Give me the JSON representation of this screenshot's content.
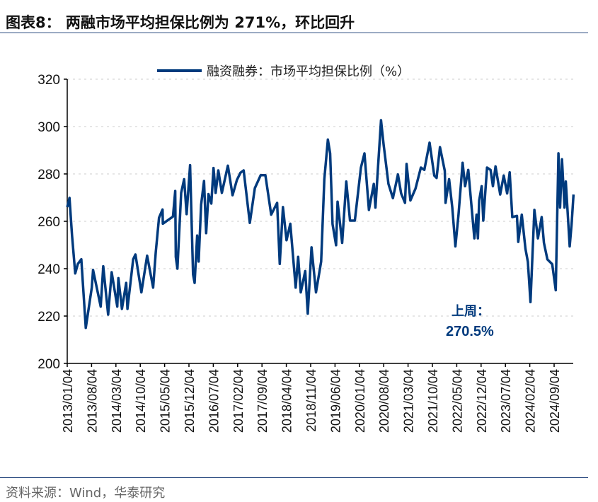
{
  "title": "图表8：  两融市场平均担保比例为 271%，环比回升",
  "source": "资料来源：Wind，华泰研究",
  "chart_data": {
    "type": "line",
    "title": "",
    "xlabel": "",
    "ylabel": "",
    "ylim": [
      200,
      320
    ],
    "yticks": [
      "200",
      "220",
      "240",
      "260",
      "280",
      "300",
      "320"
    ],
    "xticks": [
      "2013/01/04",
      "2013/08/04",
      "2014/03/04",
      "2014/10/04",
      "2015/05/04",
      "2015/12/04",
      "2016/07/04",
      "2017/02/04",
      "2017/09/04",
      "2018/04/04",
      "2018/11/04",
      "2019/06/04",
      "2020/01/04",
      "2020/08/04",
      "2021/03/04",
      "2021/10/04",
      "2022/05/04",
      "2022/12/04",
      "2023/07/04",
      "2024/02/04",
      "2024/09/04"
    ],
    "grid": "horizontal dotted",
    "legend": "top-center",
    "color": "#003a7d",
    "series": [
      {
        "name": "融资融券：市场平均担保比例（%）",
        "points": [
          [
            "2013-01-04",
            266
          ],
          [
            "2013-01-24",
            269.9
          ],
          [
            "2013-02-15",
            254
          ],
          [
            "2013-03-15",
            238
          ],
          [
            "2013-04-07",
            242
          ],
          [
            "2013-05-07",
            244
          ],
          [
            "2013-06-15",
            215
          ],
          [
            "2013-08-07",
            232
          ],
          [
            "2013-08-18",
            239.5
          ],
          [
            "2013-10-24",
            224
          ],
          [
            "2013-11-15",
            241
          ],
          [
            "2013-12-28",
            220.6
          ],
          [
            "2014-01-28",
            238.5
          ],
          [
            "2014-03-18",
            224
          ],
          [
            "2014-03-28",
            236
          ],
          [
            "2014-04-28",
            223
          ],
          [
            "2014-06-04",
            234
          ],
          [
            "2014-06-15",
            223
          ],
          [
            "2014-08-04",
            244
          ],
          [
            "2014-08-24",
            246
          ],
          [
            "2014-10-15",
            230
          ],
          [
            "2014-12-04",
            245.5
          ],
          [
            "2015-01-26",
            232
          ],
          [
            "2015-02-18",
            247
          ],
          [
            "2015-03-18",
            261.5
          ],
          [
            "2015-04-18",
            265
          ],
          [
            "2015-04-21",
            259
          ],
          [
            "2015-07-18",
            262
          ],
          [
            "2015-08-07",
            272.8
          ],
          [
            "2015-08-12",
            245
          ],
          [
            "2015-08-26",
            240
          ],
          [
            "2015-09-28",
            272
          ],
          [
            "2015-10-24",
            277.8
          ],
          [
            "2015-11-15",
            263
          ],
          [
            "2015-12-15",
            283.7
          ],
          [
            "2016-01-10",
            237.6
          ],
          [
            "2016-01-24",
            234
          ],
          [
            "2016-02-15",
            254
          ],
          [
            "2016-02-28",
            243
          ],
          [
            "2016-03-21",
            267
          ],
          [
            "2016-04-15",
            277
          ],
          [
            "2016-05-04",
            255
          ],
          [
            "2016-05-24",
            271.5
          ],
          [
            "2016-06-18",
            267.5
          ],
          [
            "2016-07-07",
            282.5
          ],
          [
            "2016-07-26",
            272
          ],
          [
            "2016-08-18",
            281.5
          ],
          [
            "2016-09-18",
            272
          ],
          [
            "2016-11-10",
            283.5
          ],
          [
            "2016-12-21",
            271
          ],
          [
            "2017-01-28",
            277.5
          ],
          [
            "2017-02-28",
            280.5
          ],
          [
            "2017-03-28",
            281.5
          ],
          [
            "2017-05-21",
            259.3
          ],
          [
            "2017-07-04",
            274
          ],
          [
            "2017-08-24",
            279.5
          ],
          [
            "2017-10-04",
            279.5
          ],
          [
            "2017-11-24",
            262.8
          ],
          [
            "2018-01-15",
            267.8
          ],
          [
            "2018-02-07",
            242
          ],
          [
            "2018-03-07",
            266
          ],
          [
            "2018-04-07",
            252
          ],
          [
            "2018-05-10",
            259
          ],
          [
            "2018-06-26",
            232
          ],
          [
            "2018-07-18",
            245
          ],
          [
            "2018-08-10",
            230
          ],
          [
            "2018-09-18",
            239
          ],
          [
            "2018-10-10",
            221
          ],
          [
            "2018-11-12",
            249
          ],
          [
            "2018-12-21",
            230
          ],
          [
            "2019-02-04",
            243
          ],
          [
            "2019-03-04",
            277.8
          ],
          [
            "2019-04-04",
            294.5
          ],
          [
            "2019-04-24",
            288.7
          ],
          [
            "2019-05-15",
            258.8
          ],
          [
            "2019-06-15",
            249.9
          ],
          [
            "2019-06-28",
            268.3
          ],
          [
            "2019-08-07",
            250.9
          ],
          [
            "2019-09-12",
            276.8
          ],
          [
            "2019-10-15",
            260.3
          ],
          [
            "2019-11-26",
            260.3
          ],
          [
            "2020-01-18",
            282.7
          ],
          [
            "2020-02-18",
            288.7
          ],
          [
            "2020-03-28",
            264.8
          ],
          [
            "2020-05-10",
            275.8
          ],
          [
            "2020-05-24",
            265.8
          ],
          [
            "2020-07-12",
            302.7
          ],
          [
            "2020-08-04",
            292.3
          ],
          [
            "2020-09-15",
            275.8
          ],
          [
            "2020-10-24",
            269.8
          ],
          [
            "2020-12-07",
            279.8
          ],
          [
            "2021-01-04",
            271.8
          ],
          [
            "2021-02-07",
            267.8
          ],
          [
            "2021-02-21",
            284.2
          ],
          [
            "2021-03-26",
            268.8
          ],
          [
            "2021-05-10",
            273.8
          ],
          [
            "2021-06-26",
            282.7
          ],
          [
            "2021-07-26",
            281.7
          ],
          [
            "2021-09-10",
            293.2
          ],
          [
            "2021-10-21",
            279.3
          ],
          [
            "2021-11-10",
            278.3
          ],
          [
            "2021-12-10",
            291.3
          ],
          [
            "2022-01-21",
            281.3
          ],
          [
            "2022-01-28",
            267.8
          ],
          [
            "2022-02-28",
            277.8
          ],
          [
            "2022-03-28",
            265.8
          ],
          [
            "2022-04-24",
            249.4
          ],
          [
            "2022-05-21",
            262.8
          ],
          [
            "2022-06-26",
            284.7
          ],
          [
            "2022-07-18",
            274.8
          ],
          [
            "2022-08-15",
            281.7
          ],
          [
            "2022-10-07",
            252.8
          ],
          [
            "2022-10-26",
            262.8
          ],
          [
            "2022-11-07",
            252.8
          ],
          [
            "2022-11-18",
            268.8
          ],
          [
            "2022-12-10",
            274.8
          ],
          [
            "2022-12-24",
            260.3
          ],
          [
            "2023-01-26",
            282.7
          ],
          [
            "2023-02-26",
            281.7
          ],
          [
            "2023-03-18",
            274.8
          ],
          [
            "2023-04-10",
            283.2
          ],
          [
            "2023-05-21",
            271.3
          ],
          [
            "2023-06-21",
            279.3
          ],
          [
            "2023-07-21",
            271.8
          ],
          [
            "2023-08-12",
            280.7
          ],
          [
            "2023-09-04",
            261.8
          ],
          [
            "2023-10-15",
            262.3
          ],
          [
            "2023-10-26",
            251.3
          ],
          [
            "2023-11-26",
            262.8
          ],
          [
            "2023-12-28",
            248.4
          ],
          [
            "2024-01-18",
            242.9
          ],
          [
            "2024-02-10",
            225.9
          ],
          [
            "2024-03-15",
            264.8
          ],
          [
            "2024-04-15",
            252.8
          ],
          [
            "2024-05-18",
            261.8
          ],
          [
            "2024-06-07",
            250.9
          ],
          [
            "2024-07-07",
            243.9
          ],
          [
            "2024-08-18",
            241.9
          ],
          [
            "2024-09-18",
            230.9
          ],
          [
            "2024-10-12",
            288.7
          ],
          [
            "2024-10-26",
            265.8
          ],
          [
            "2024-11-12",
            286.2
          ],
          [
            "2024-12-04",
            265.8
          ],
          [
            "2024-12-15",
            276.8
          ],
          [
            "2025-01-18",
            249.4
          ],
          [
            "2025-02-04",
            258.8
          ],
          [
            "2025-02-21",
            271.3
          ]
        ]
      }
    ],
    "annotation": {
      "label": "上周：",
      "value": "270.5%"
    }
  }
}
